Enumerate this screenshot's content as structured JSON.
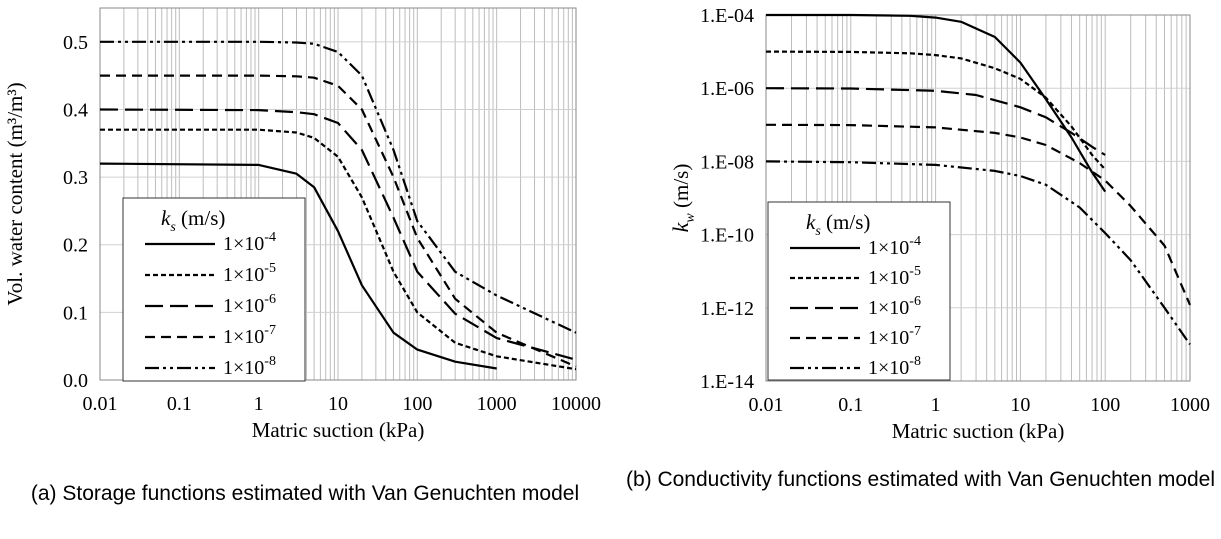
{
  "chart_data": [
    {
      "type": "line",
      "xlabel": "Matric suction (kPa)",
      "ylabel": "Vol. water content (m³/m³)",
      "xscale": "log",
      "xlim": [
        0.01,
        10000
      ],
      "ylim": [
        0.0,
        0.55
      ],
      "xticks": [
        "0.01",
        "0.1",
        "1",
        "10",
        "100",
        "1000",
        "10000"
      ],
      "yticks": [
        "0.0",
        "0.1",
        "0.2",
        "0.3",
        "0.4",
        "0.5"
      ],
      "ytick_values": [
        0,
        0.1,
        0.2,
        0.3,
        0.4,
        0.5
      ],
      "grid": true,
      "legend": {
        "position": "bottom-left",
        "title_var": "k",
        "title_sub": "s",
        "title_unit": " (m/s)",
        "entries": [
          {
            "base": "1×10",
            "exp": "-4"
          },
          {
            "base": "1×10",
            "exp": "-5"
          },
          {
            "base": "1×10",
            "exp": "-6"
          },
          {
            "base": "1×10",
            "exp": "-7"
          },
          {
            "base": "1×10",
            "exp": "-8"
          }
        ]
      },
      "series": [
        {
          "name": "1×10⁻⁴",
          "dash": "solid",
          "x": [
            0.01,
            1,
            3,
            5,
            10,
            20,
            50,
            100,
            300,
            1000
          ],
          "y": [
            0.32,
            0.318,
            0.305,
            0.285,
            0.22,
            0.14,
            0.07,
            0.045,
            0.027,
            0.017
          ]
        },
        {
          "name": "1×10⁻⁵",
          "dash": "short",
          "x": [
            0.01,
            1,
            3,
            5,
            10,
            20,
            50,
            100,
            300,
            1000,
            10000
          ],
          "y": [
            0.37,
            0.37,
            0.366,
            0.358,
            0.33,
            0.27,
            0.16,
            0.1,
            0.055,
            0.035,
            0.016
          ]
        },
        {
          "name": "1×10⁻⁶",
          "dash": "long",
          "x": [
            0.01,
            1,
            3,
            5,
            10,
            20,
            50,
            100,
            300,
            1000,
            10000
          ],
          "y": [
            0.4,
            0.399,
            0.396,
            0.393,
            0.38,
            0.34,
            0.24,
            0.16,
            0.098,
            0.062,
            0.03
          ]
        },
        {
          "name": "1×10⁻⁷",
          "dash": "medium",
          "x": [
            0.01,
            1,
            3,
            5,
            10,
            20,
            50,
            100,
            300,
            1000,
            10000
          ],
          "y": [
            0.45,
            0.45,
            0.449,
            0.447,
            0.435,
            0.4,
            0.3,
            0.21,
            0.12,
            0.07,
            0.02
          ]
        },
        {
          "name": "1×10⁻⁸",
          "dash": "dashdotdot",
          "x": [
            0.01,
            1,
            3,
            5,
            10,
            20,
            50,
            100,
            300,
            1000,
            10000
          ],
          "y": [
            0.5,
            0.5,
            0.499,
            0.497,
            0.485,
            0.45,
            0.34,
            0.235,
            0.16,
            0.125,
            0.07
          ]
        }
      ]
    },
    {
      "type": "line",
      "xlabel": "Matric suction (kPa)",
      "ylabel_var": "k",
      "ylabel_sub": "w",
      "ylabel_unit": "  (m/s)",
      "xscale": "log",
      "yscale": "log",
      "xlim": [
        0.01,
        1000
      ],
      "ylim": [
        1e-14,
        0.0001
      ],
      "xticks": [
        "0.01",
        "0.1",
        "1",
        "10",
        "100",
        "1000"
      ],
      "yticks": [
        "1.E-04",
        "1.E-06",
        "1.E-08",
        "1.E-10",
        "1.E-12",
        "1.E-14"
      ],
      "ytick_values": [
        -4,
        -6,
        -8,
        -10,
        -12,
        -14
      ],
      "grid": true,
      "legend": {
        "position": "bottom-left",
        "title_var": "k",
        "title_sub": "s",
        "title_unit": " (m/s)",
        "entries": [
          {
            "base": "1×10",
            "exp": "-4"
          },
          {
            "base": "1×10",
            "exp": "-5"
          },
          {
            "base": "1×10",
            "exp": "-6"
          },
          {
            "base": "1×10",
            "exp": "-7"
          },
          {
            "base": "1×10",
            "exp": "-8"
          }
        ]
      },
      "series": [
        {
          "name": "1×10⁻⁴",
          "dash": "solid",
          "x": [
            0.01,
            0.1,
            0.5,
            1,
            2,
            5,
            10,
            20,
            40,
            70,
            100
          ],
          "y": [
            0.0001,
            0.0001,
            9.5e-05,
            8.5e-05,
            6.5e-05,
            2.5e-05,
            5e-06,
            5e-07,
            4.5e-08,
            5e-09,
            1.5e-09
          ]
        },
        {
          "name": "1×10⁻⁵",
          "dash": "short",
          "x": [
            0.01,
            0.1,
            0.5,
            1,
            2,
            5,
            10,
            20,
            40,
            70,
            100
          ],
          "y": [
            1e-05,
            9.8e-06,
            9e-06,
            8e-06,
            6.5e-06,
            3.5e-06,
            1.8e-06,
            5.5e-07,
            9e-08,
            1.5e-08,
            6e-09
          ]
        },
        {
          "name": "1×10⁻⁶",
          "dash": "long",
          "x": [
            0.01,
            0.1,
            1,
            3,
            10,
            20,
            40,
            70,
            100
          ],
          "y": [
            1e-06,
            9.8e-07,
            8.5e-07,
            6.5e-07,
            3e-07,
            1.6e-07,
            6e-08,
            2.5e-08,
            1.5e-08
          ]
        },
        {
          "name": "1×10⁻⁷",
          "dash": "medium",
          "x": [
            0.01,
            0.1,
            1,
            5,
            10,
            20,
            50,
            100,
            200,
            500,
            1000
          ],
          "y": [
            1e-07,
            9.8e-08,
            8.5e-08,
            6e-08,
            4.5e-08,
            2.8e-08,
            9e-09,
            3e-09,
            6e-10,
            5e-11,
            1.2e-12
          ]
        },
        {
          "name": "1×10⁻⁸",
          "dash": "dashdotdot",
          "x": [
            0.01,
            0.1,
            1,
            5,
            10,
            20,
            50,
            100,
            200,
            500,
            1000
          ],
          "y": [
            1e-08,
            9.5e-09,
            8e-09,
            5.5e-09,
            4e-09,
            2.3e-09,
            5.5e-10,
            1.1e-10,
            2e-11,
            1e-12,
            1e-13
          ]
        }
      ]
    }
  ],
  "captions": {
    "a": "(a) Storage functions estimated with Van Genuchten model",
    "b": "(b) Conductivity functions estimated with Van Genuchten model"
  }
}
